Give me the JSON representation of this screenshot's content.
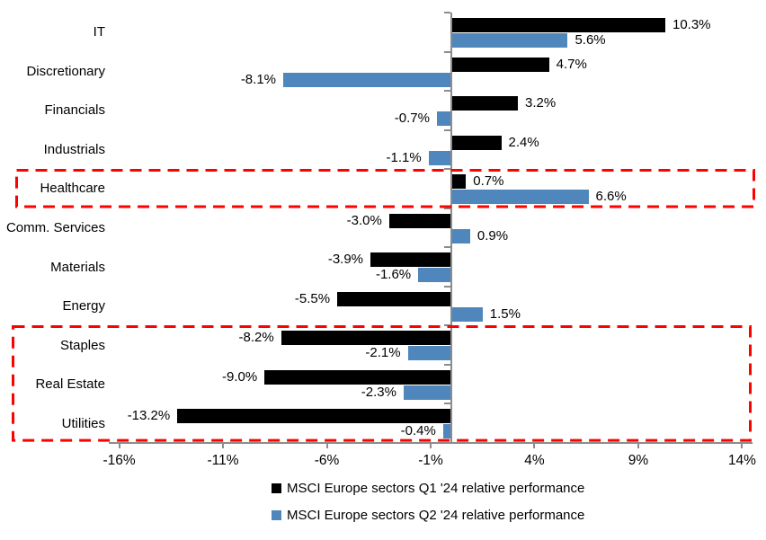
{
  "colors": {
    "q1_bar": "#000000",
    "q2_bar": "#4F87BD",
    "highlight_box": "#FF0000",
    "axis": "#8C8C8C",
    "text": "#000000",
    "background": "#FFFFFF"
  },
  "chart_data": {
    "type": "bar",
    "orientation": "horizontal",
    "title": "",
    "xlabel": "",
    "ylabel": "",
    "xlim": [
      -16.5,
      14.5
    ],
    "grid": false,
    "legend_position": "bottom",
    "categories": [
      "IT",
      "Discretionary",
      "Financials",
      "Industrials",
      "Healthcare",
      "Comm. Services",
      "Materials",
      "Energy",
      "Staples",
      "Real Estate",
      "Utilities"
    ],
    "series": [
      {
        "name": "MSCI Europe sectors Q1 '24 relative performance",
        "color": "#000000",
        "values": [
          10.3,
          4.7,
          3.2,
          2.4,
          0.7,
          -3.0,
          -3.9,
          -5.5,
          -8.2,
          -9.0,
          -13.2
        ],
        "labels": [
          "10.3%",
          "4.7%",
          "3.2%",
          "2.4%",
          "0.7%",
          "-3.0%",
          "-3.9%",
          "-5.5%",
          "-8.2%",
          "-9.0%",
          "-13.2%"
        ]
      },
      {
        "name": "MSCI Europe sectors Q2 '24 relative performance",
        "color": "#4F87BD",
        "values": [
          5.6,
          -8.1,
          -0.7,
          -1.1,
          6.6,
          0.9,
          -1.6,
          1.5,
          -2.1,
          -2.3,
          -0.4
        ],
        "labels": [
          "5.6%",
          "-8.1%",
          "-0.7%",
          "-1.1%",
          "6.6%",
          "0.9%",
          "-1.6%",
          "1.5%",
          "-2.1%",
          "-2.3%",
          "-0.4%"
        ]
      }
    ],
    "x_ticks": [
      {
        "value": -16,
        "label": "-16%"
      },
      {
        "value": -11,
        "label": "-11%"
      },
      {
        "value": -6,
        "label": "-6%"
      },
      {
        "value": -1,
        "label": "-1%"
      },
      {
        "value": 4,
        "label": "4%"
      },
      {
        "value": 9,
        "label": "9%"
      },
      {
        "value": 14,
        "label": "14%"
      }
    ],
    "data_labels": true,
    "highlighted_groups": [
      {
        "name": "healthcare-highlight",
        "categories": [
          "Healthcare"
        ]
      },
      {
        "name": "defensives-highlight",
        "categories": [
          "Staples",
          "Real Estate",
          "Utilities"
        ]
      }
    ]
  },
  "legend": {
    "q1_label": "MSCI Europe sectors Q1 '24 relative performance",
    "q2_label": "MSCI Europe sectors Q2 '24 relative performance"
  }
}
